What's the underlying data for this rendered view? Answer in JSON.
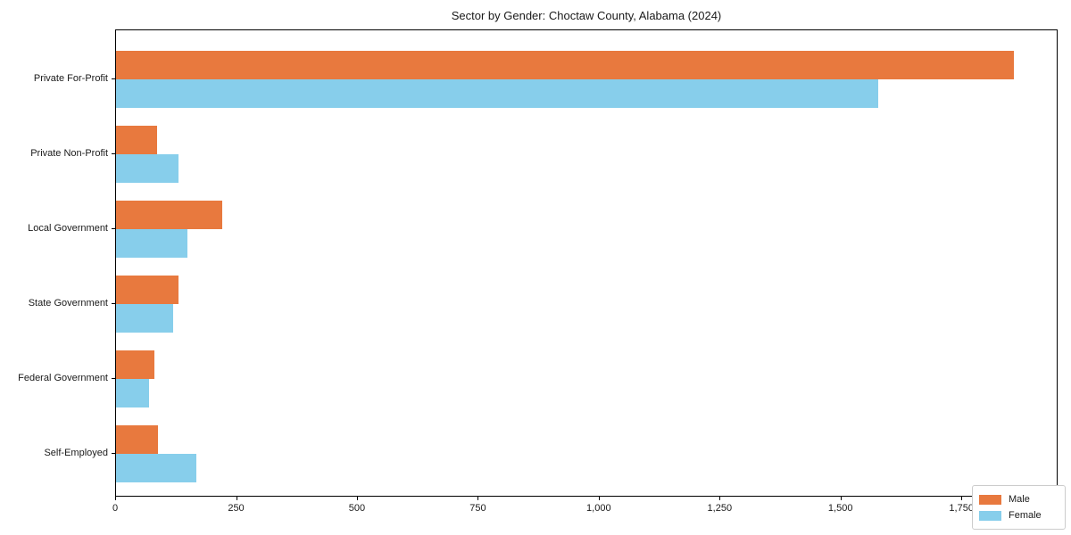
{
  "title": "Sector by Gender: Choctaw County, Alabama (2024)",
  "chart_data": {
    "type": "bar",
    "orientation": "horizontal",
    "title": "Sector by Gender: Choctaw County, Alabama (2024)",
    "categories": [
      "Private For-Profit",
      "Private Non-Profit",
      "Local Government",
      "State Government",
      "Federal Government",
      "Self-Employed"
    ],
    "series": [
      {
        "name": "Male",
        "color": "#e8793e",
        "values": [
          1856,
          85,
          220,
          129,
          79,
          86
        ]
      },
      {
        "name": "Female",
        "color": "#87ceeb",
        "values": [
          1577,
          130,
          147,
          118,
          68,
          166
        ]
      }
    ],
    "xlim": [
      0,
      1949
    ],
    "x_ticks": [
      0,
      250,
      500,
      750,
      1000,
      1250,
      1500,
      1750
    ],
    "x_tick_labels": [
      "0",
      "250",
      "500",
      "750",
      "1,000",
      "1,250",
      "1,500",
      "1,750"
    ],
    "xlabel": "",
    "ylabel": "",
    "grid": false,
    "legend": {
      "position": "lower right",
      "entries": [
        "Male",
        "Female"
      ]
    }
  },
  "colors": {
    "male": "#e8793e",
    "female": "#87ceeb",
    "axis": "#000000",
    "background": "#ffffff",
    "legend_border": "#cccccc"
  }
}
